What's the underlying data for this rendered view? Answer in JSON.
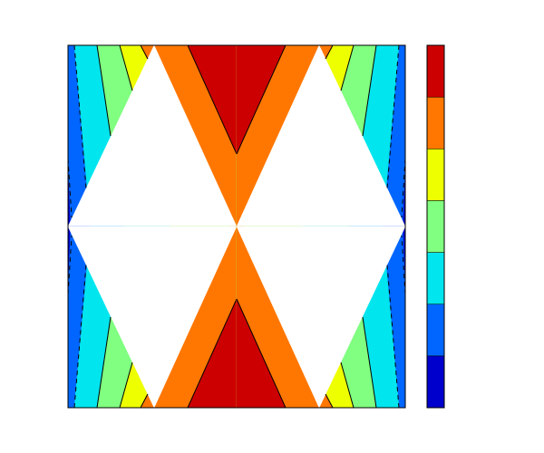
{
  "chart_data": {
    "type": "contour",
    "colors": [
      "#0000cc",
      "#0066ff",
      "#00e5ee",
      "#80ff80",
      "#eeff00",
      "#ff7700",
      "#cc0000"
    ]
  }
}
